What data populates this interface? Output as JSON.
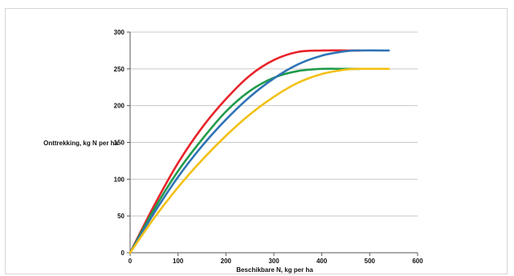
{
  "chart_data": {
    "type": "line",
    "title": "",
    "xlabel": "Beschikbare N, kg per ha",
    "ylabel": "Onttrekking, kg N per ha",
    "xlim": [
      0,
      600
    ],
    "ylim": [
      0,
      300
    ],
    "xticks": [
      0,
      100,
      200,
      300,
      400,
      500,
      600
    ],
    "yticks": [
      0,
      50,
      100,
      150,
      200,
      250,
      300
    ],
    "grid": "horizontal",
    "legend": "none",
    "series": [
      {
        "color": "#e8232a",
        "x": [
          0,
          50,
          100,
          150,
          200,
          250,
          300,
          350,
          400,
          450,
          480
        ],
        "y": [
          0,
          64,
          122,
          170,
          209,
          241,
          262,
          273,
          275,
          275,
          275
        ]
      },
      {
        "color": "#1f9b4a",
        "x": [
          0,
          50,
          100,
          150,
          200,
          250,
          300,
          350,
          400,
          450,
          480
        ],
        "y": [
          0,
          59,
          111,
          154,
          192,
          220,
          238,
          247,
          250,
          250,
          250
        ]
      },
      {
        "color": "#2f74b5",
        "x": [
          0,
          50,
          100,
          150,
          200,
          250,
          300,
          350,
          400,
          450,
          480,
          540
        ],
        "y": [
          0,
          54,
          103,
          145,
          181,
          212,
          237,
          256,
          268,
          274,
          275,
          275
        ]
      },
      {
        "color": "#f2c012",
        "x": [
          0,
          50,
          100,
          150,
          200,
          250,
          300,
          350,
          400,
          450,
          480,
          540
        ],
        "y": [
          0,
          47,
          89,
          126,
          159,
          188,
          212,
          231,
          243,
          249,
          250,
          250
        ]
      }
    ]
  }
}
